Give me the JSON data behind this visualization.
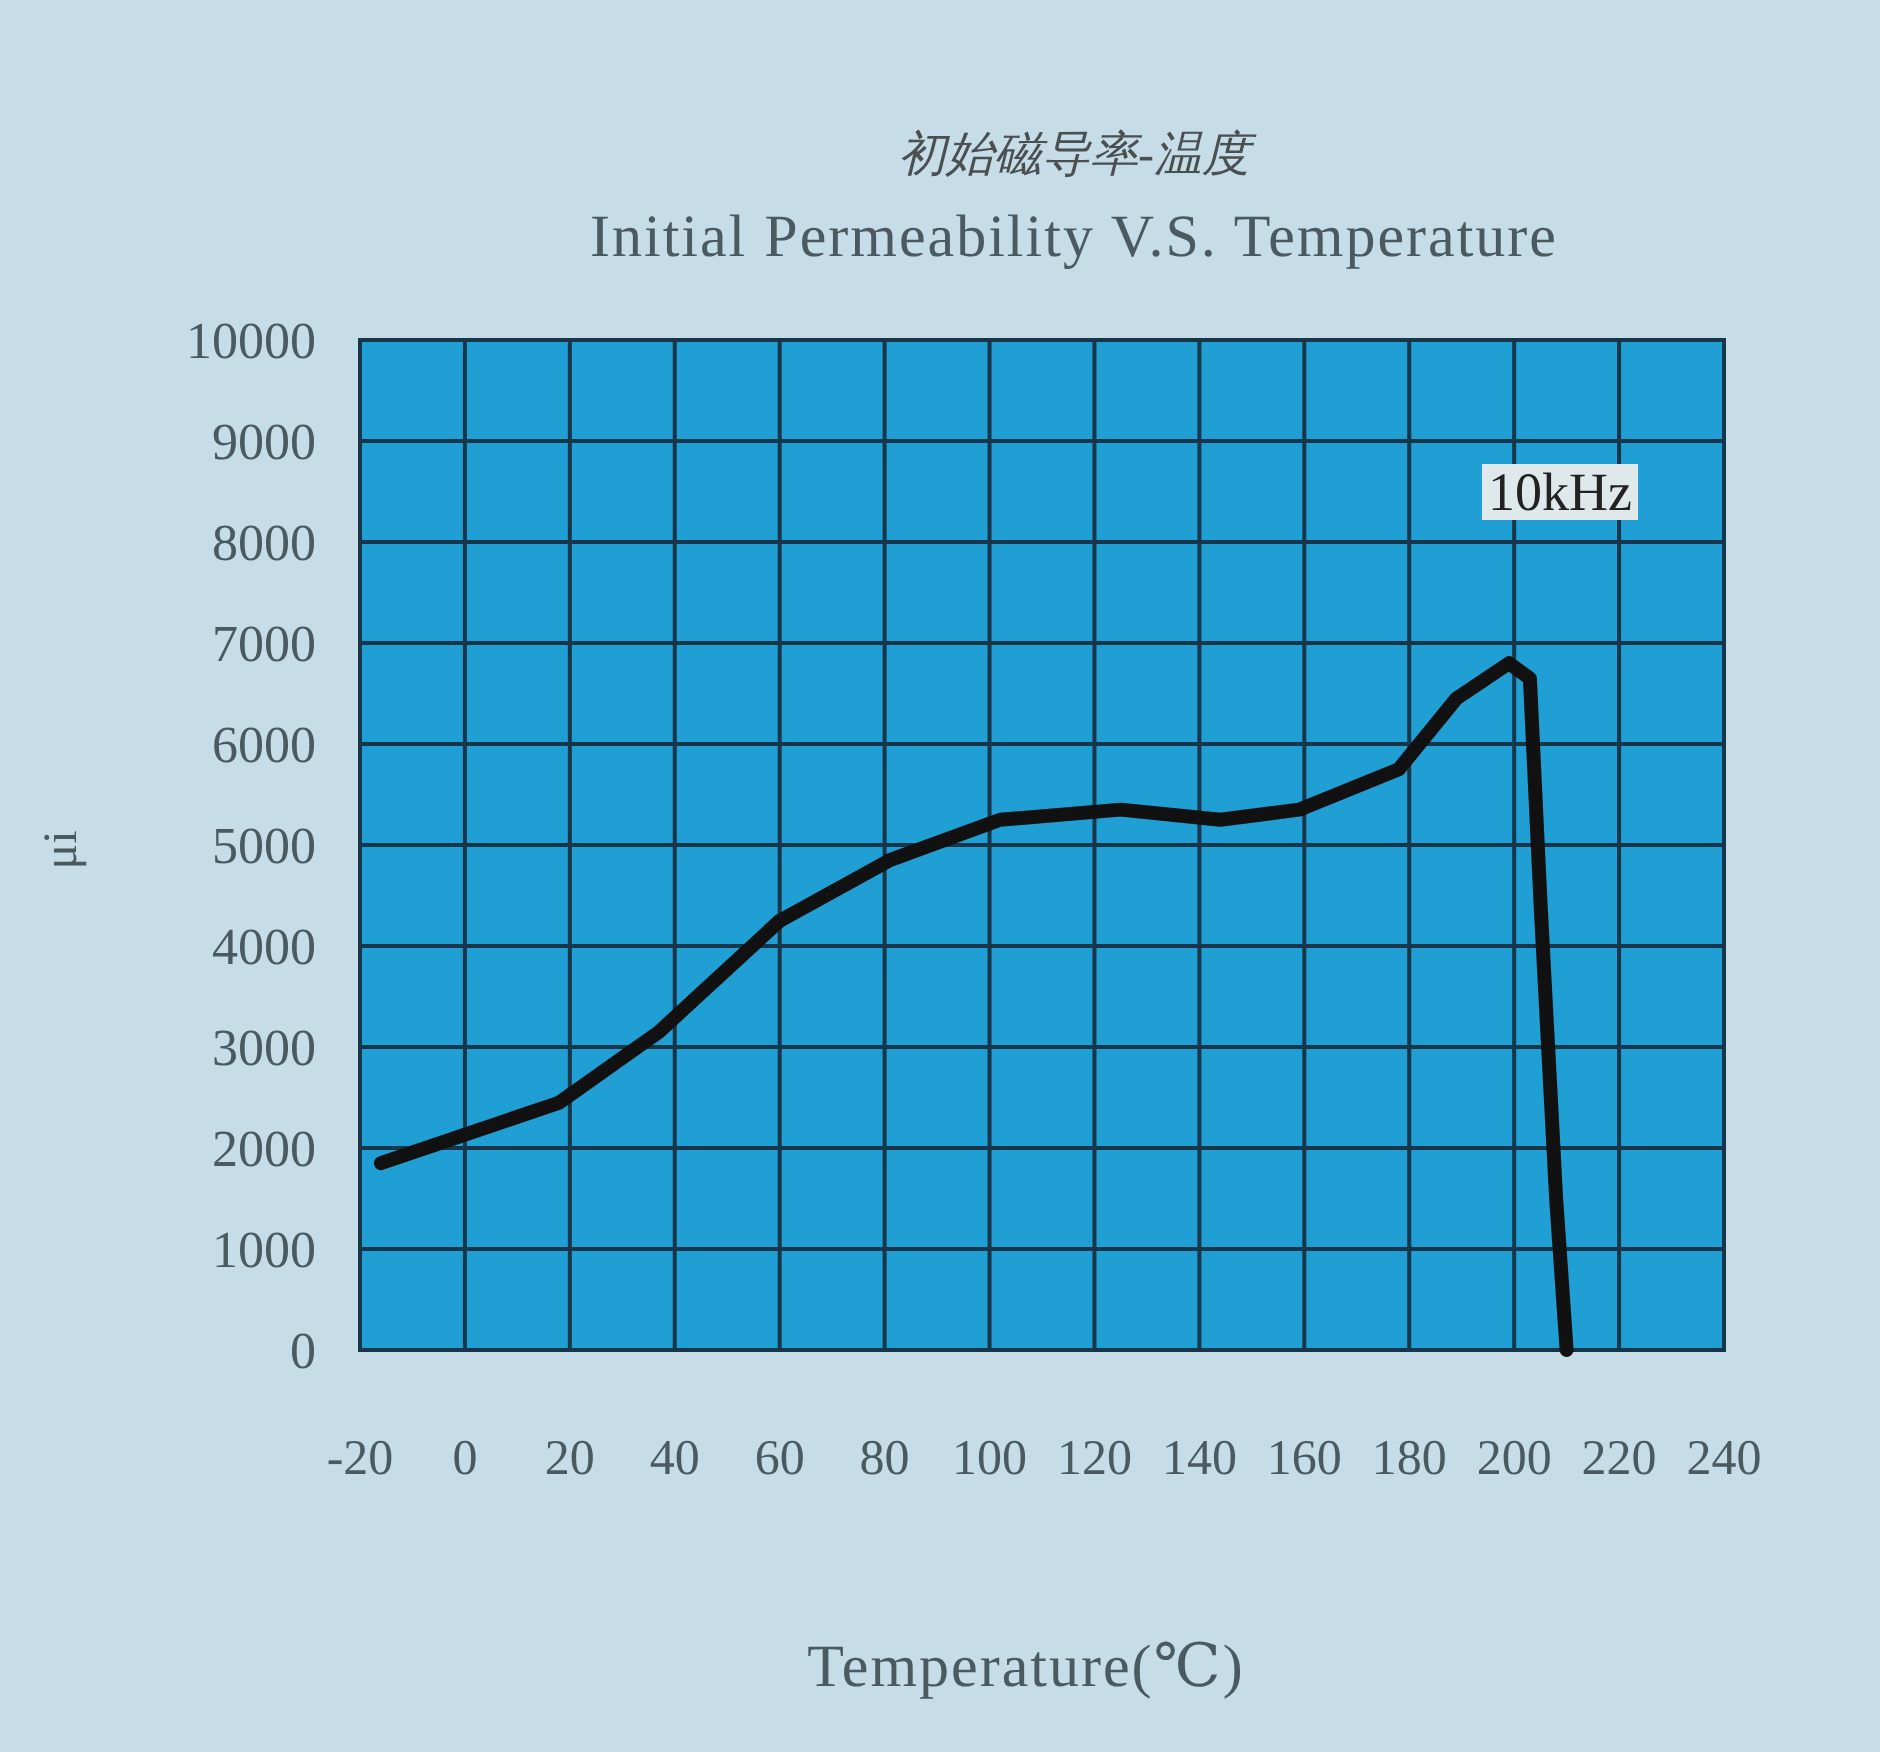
{
  "chart_data": {
    "type": "line",
    "title": "初始磁导率-温度",
    "subtitle": "Initial Permeability V.S. Temperature",
    "xlabel": "Temperature(℃)",
    "ylabel": "μi",
    "annotations": [
      "10kHz"
    ],
    "series": [
      {
        "color": "#111111",
        "x": [
          -16,
          1,
          18,
          37,
          60,
          81,
          102,
          125,
          144,
          159,
          178,
          189,
          199,
          203,
          205,
          208,
          210
        ],
        "values": [
          1850,
          2150,
          2450,
          3150,
          4250,
          4850,
          5250,
          5350,
          5250,
          5350,
          5750,
          6450,
          6800,
          6650,
          4450,
          1500,
          0
        ]
      }
    ],
    "xlim": [
      -20,
      240
    ],
    "ylim": [
      0,
      10000
    ],
    "xticks": [
      -20,
      0,
      20,
      40,
      60,
      80,
      100,
      120,
      140,
      160,
      180,
      200,
      220,
      240
    ],
    "yticks": [
      0,
      1000,
      2000,
      3000,
      4000,
      5000,
      6000,
      7000,
      8000,
      9000,
      10000
    ],
    "grid": true,
    "line_style": "solid",
    "marker": "none"
  }
}
